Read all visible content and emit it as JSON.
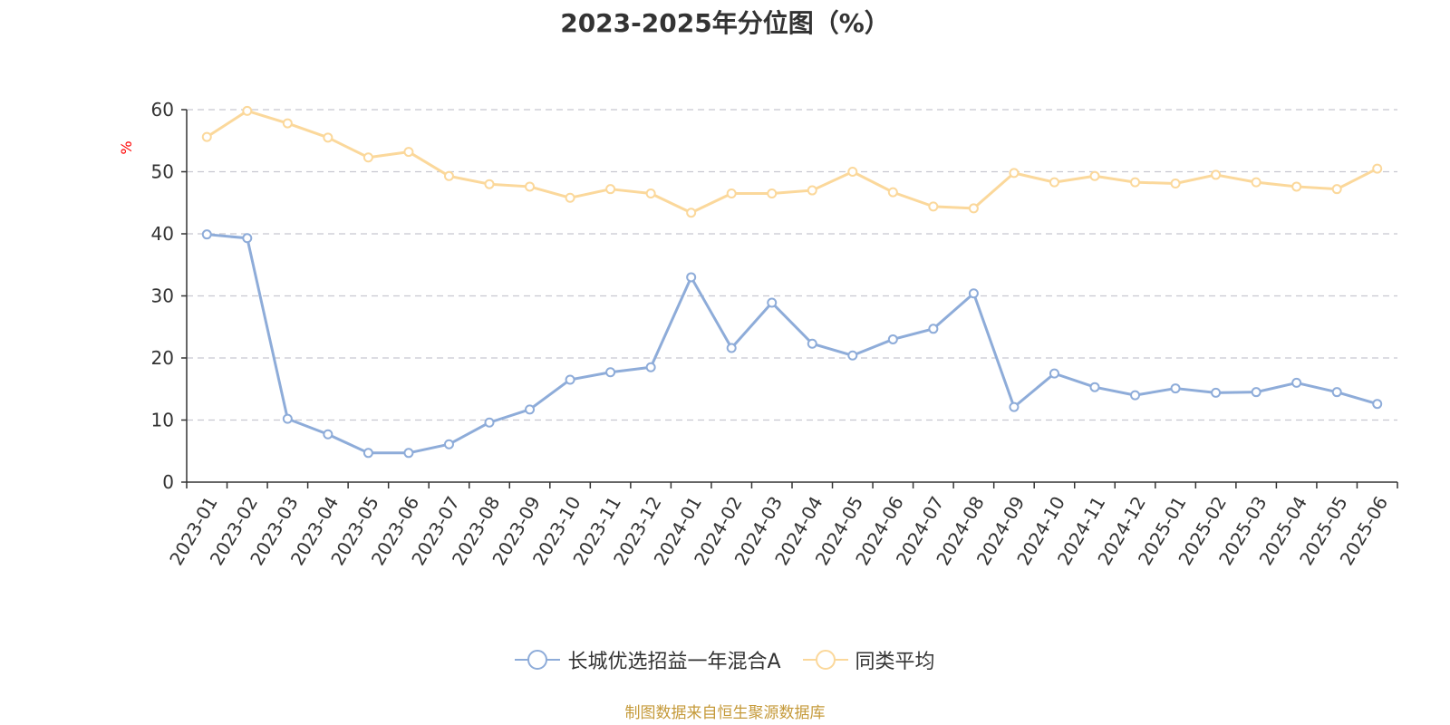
{
  "chart_data": {
    "type": "line",
    "title": "2023-2025年分位图（%）",
    "ylabel": "%",
    "xlabel": "",
    "ylim": [
      0,
      60
    ],
    "yticks": [
      0,
      10,
      20,
      30,
      40,
      50,
      60
    ],
    "grid": true,
    "legend_position": "bottom-center",
    "categories": [
      "2023-01",
      "2023-02",
      "2023-03",
      "2023-04",
      "2023-05",
      "2023-06",
      "2023-07",
      "2023-08",
      "2023-09",
      "2023-10",
      "2023-11",
      "2023-12",
      "2024-01",
      "2024-02",
      "2024-03",
      "2024-04",
      "2024-05",
      "2024-06",
      "2024-07",
      "2024-08",
      "2024-09",
      "2024-10",
      "2024-11",
      "2024-12",
      "2025-01",
      "2025-02",
      "2025-03",
      "2025-04",
      "2025-05",
      "2025-06"
    ],
    "series": [
      {
        "name": "长城优选招益一年混合A",
        "color": "#8eacd9",
        "values": [
          39.9,
          39.3,
          10.2,
          7.7,
          4.7,
          4.7,
          6.1,
          9.6,
          11.7,
          16.5,
          17.7,
          18.5,
          33.0,
          21.6,
          28.9,
          22.3,
          20.4,
          23.0,
          24.7,
          30.4,
          12.1,
          17.5,
          15.3,
          14.0,
          15.1,
          14.4,
          14.5,
          16.0,
          14.5,
          12.6
        ]
      },
      {
        "name": "同类平均",
        "color": "#fbd89b",
        "values": [
          55.6,
          59.8,
          57.8,
          55.5,
          52.3,
          53.2,
          49.3,
          48.0,
          47.6,
          45.8,
          47.2,
          46.5,
          43.4,
          46.5,
          46.5,
          47.0,
          50.0,
          46.7,
          44.4,
          44.1,
          49.8,
          48.3,
          49.3,
          48.3,
          48.1,
          49.5,
          48.3,
          47.6,
          47.2,
          50.5
        ]
      }
    ]
  },
  "source_note": "制图数据来自恒生聚源数据库"
}
